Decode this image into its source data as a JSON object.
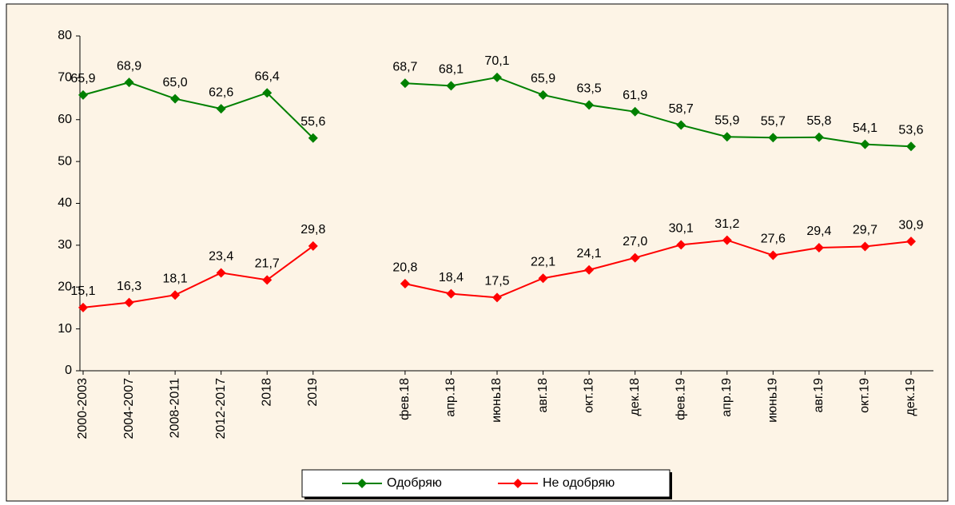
{
  "chart_data": {
    "type": "line",
    "categories": [
      "2000-2003",
      "2004-2007",
      "2008-2011",
      "2012-2017",
      "2018",
      "2019",
      null,
      "фев.18",
      "апр.18",
      "июнь18",
      "авг.18",
      "окт.18",
      "дек.18",
      "фев.19",
      "апр.19",
      "июнь19",
      "авг.19",
      "окт.19",
      "дек.19"
    ],
    "series": [
      {
        "name": "Одобряю",
        "color": "#008000",
        "values": [
          65.9,
          68.9,
          65.0,
          62.6,
          66.4,
          55.6,
          null,
          68.7,
          68.1,
          70.1,
          65.9,
          63.5,
          61.9,
          58.7,
          55.9,
          55.7,
          55.8,
          54.1,
          53.6
        ],
        "value_labels": [
          "65,9",
          "68,9",
          "65,0",
          "62,6",
          "66,4",
          "55,6",
          null,
          "68,7",
          "68,1",
          "70,1",
          "65,9",
          "63,5",
          "61,9",
          "58,7",
          "55,9",
          "55,7",
          "55,8",
          "54,1",
          "53,6"
        ]
      },
      {
        "name": "Не одобряю",
        "color": "#ff0000",
        "values": [
          15.1,
          16.3,
          18.1,
          23.4,
          21.7,
          29.8,
          null,
          20.8,
          18.4,
          17.5,
          22.1,
          24.1,
          27.0,
          30.1,
          31.2,
          27.6,
          29.4,
          29.7,
          30.9
        ],
        "value_labels": [
          "15,1",
          "16,3",
          "18,1",
          "23,4",
          "21,7",
          "29,8",
          null,
          "20,8",
          "18,4",
          "17,5",
          "22,1",
          "24,1",
          "27,0",
          "30,1",
          "31,2",
          "27,6",
          "29,4",
          "29,7",
          "30,9"
        ]
      }
    ],
    "ylim": [
      0,
      80
    ],
    "yticks": [
      0,
      10,
      20,
      30,
      40,
      50,
      60,
      70,
      80
    ],
    "legend": "bottom"
  }
}
